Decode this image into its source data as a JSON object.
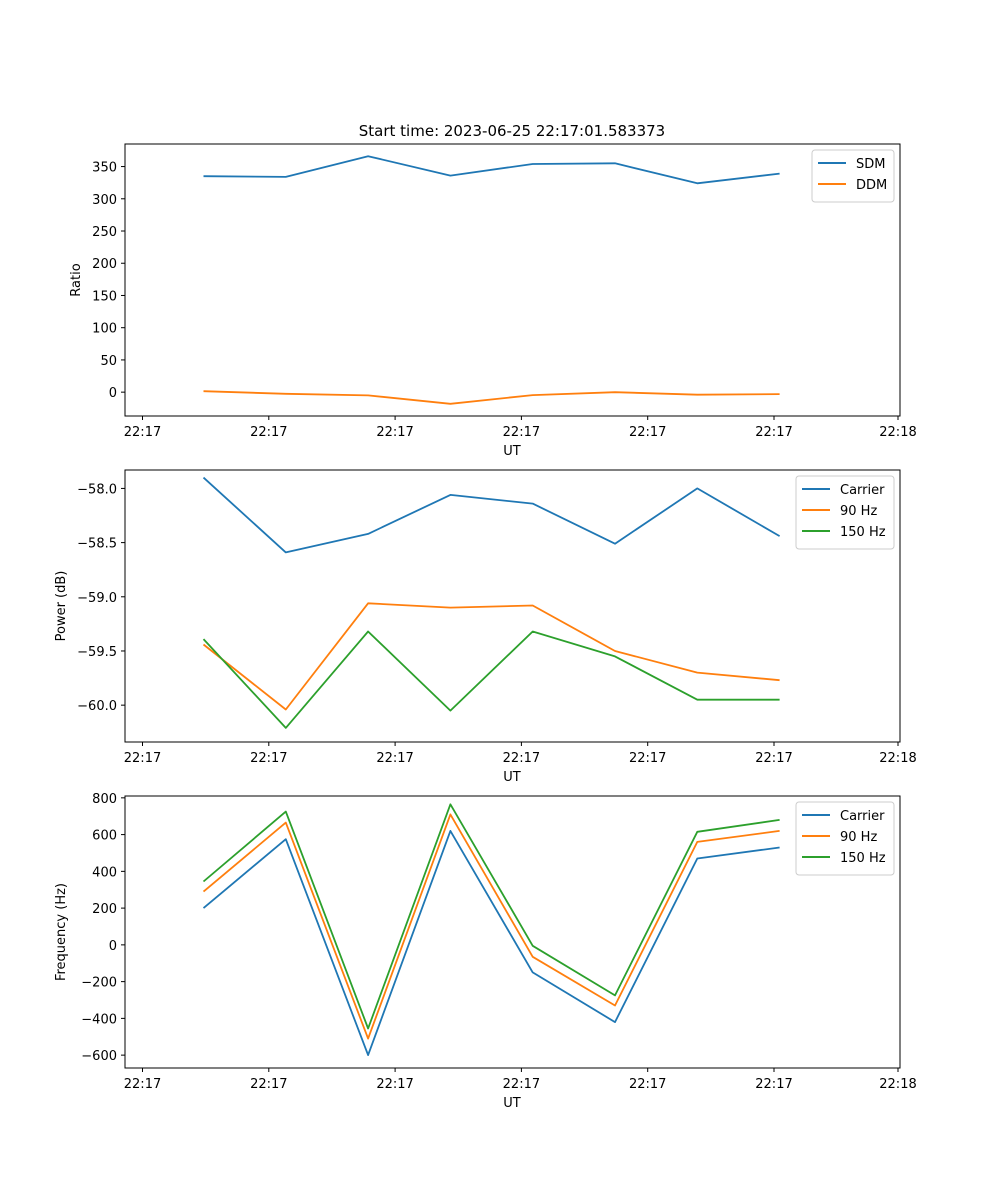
{
  "figure": {
    "title": "Start time: 2023-06-25 22:17:01.583373"
  },
  "chart_data": [
    {
      "type": "line",
      "xlabel": "UT",
      "ylabel": "Ratio",
      "x_tick_labels": [
        "22:17",
        "22:17",
        "22:17",
        "22:17",
        "22:17",
        "22:17",
        "22:17",
        "22:18"
      ],
      "ylim": [
        -37,
        385
      ],
      "yticks": [
        0,
        50,
        100,
        150,
        200,
        250,
        300,
        350
      ],
      "ytick_labels": [
        "0",
        "50",
        "100",
        "150",
        "200",
        "250",
        "300",
        "350"
      ],
      "legend_position": "top-right",
      "x": [
        1,
        2,
        3,
        4,
        5,
        6,
        7,
        8
      ],
      "series": [
        {
          "name": "SDM",
          "color": "#1f77b4",
          "values": [
            335,
            334,
            366,
            336,
            354,
            355,
            324,
            339
          ]
        },
        {
          "name": "DDM",
          "color": "#ff7f0e",
          "values": [
            1.5,
            -2.5,
            -5,
            -18,
            -4.5,
            0,
            -4,
            -3
          ]
        }
      ]
    },
    {
      "type": "line",
      "xlabel": "UT",
      "ylabel": "Power (dB)",
      "x_tick_labels": [
        "22:17",
        "22:17",
        "22:17",
        "22:17",
        "22:17",
        "22:17",
        "22:17",
        "22:18"
      ],
      "ylim": [
        -60.34,
        -57.83
      ],
      "yticks": [
        -60.0,
        -59.5,
        -59.0,
        -58.5,
        -58.0
      ],
      "ytick_labels": [
        "−60.0",
        "−59.5",
        "−59.0",
        "−58.5",
        "−58.0"
      ],
      "legend_position": "top-right",
      "x": [
        1,
        2,
        3,
        4,
        5,
        6,
        7,
        8
      ],
      "series": [
        {
          "name": "Carrier",
          "color": "#1f77b4",
          "values": [
            -57.9,
            -58.59,
            -58.42,
            -58.06,
            -58.14,
            -58.51,
            -58.0,
            -58.44
          ]
        },
        {
          "name": "90 Hz",
          "color": "#ff7f0e",
          "values": [
            -59.44,
            -60.04,
            -59.06,
            -59.1,
            -59.08,
            -59.5,
            -59.7,
            -59.77
          ]
        },
        {
          "name": "150 Hz",
          "color": "#2ca02c",
          "values": [
            -59.39,
            -60.21,
            -59.32,
            -60.05,
            -59.32,
            -59.55,
            -59.95,
            -59.95
          ]
        }
      ]
    },
    {
      "type": "line",
      "xlabel": "UT",
      "ylabel": "Frequency (Hz)",
      "x_tick_labels": [
        "22:17",
        "22:17",
        "22:17",
        "22:17",
        "22:17",
        "22:17",
        "22:17",
        "22:18"
      ],
      "ylim": [
        -670,
        810
      ],
      "yticks": [
        -600,
        -400,
        -200,
        0,
        200,
        400,
        600,
        800
      ],
      "ytick_labels": [
        "−600",
        "−400",
        "−200",
        "0",
        "200",
        "400",
        "600",
        "800"
      ],
      "legend_position": "top-right",
      "x": [
        1,
        2,
        3,
        4,
        5,
        6,
        7,
        8
      ],
      "series": [
        {
          "name": "Carrier",
          "color": "#1f77b4",
          "values": [
            200,
            575,
            -600,
            620,
            -150,
            -420,
            470,
            530
          ]
        },
        {
          "name": "90 Hz",
          "color": "#ff7f0e",
          "values": [
            290,
            665,
            -510,
            710,
            -65,
            -330,
            560,
            620
          ]
        },
        {
          "name": "150 Hz",
          "color": "#2ca02c",
          "values": [
            345,
            725,
            -455,
            765,
            -5,
            -275,
            615,
            680
          ]
        }
      ]
    }
  ]
}
